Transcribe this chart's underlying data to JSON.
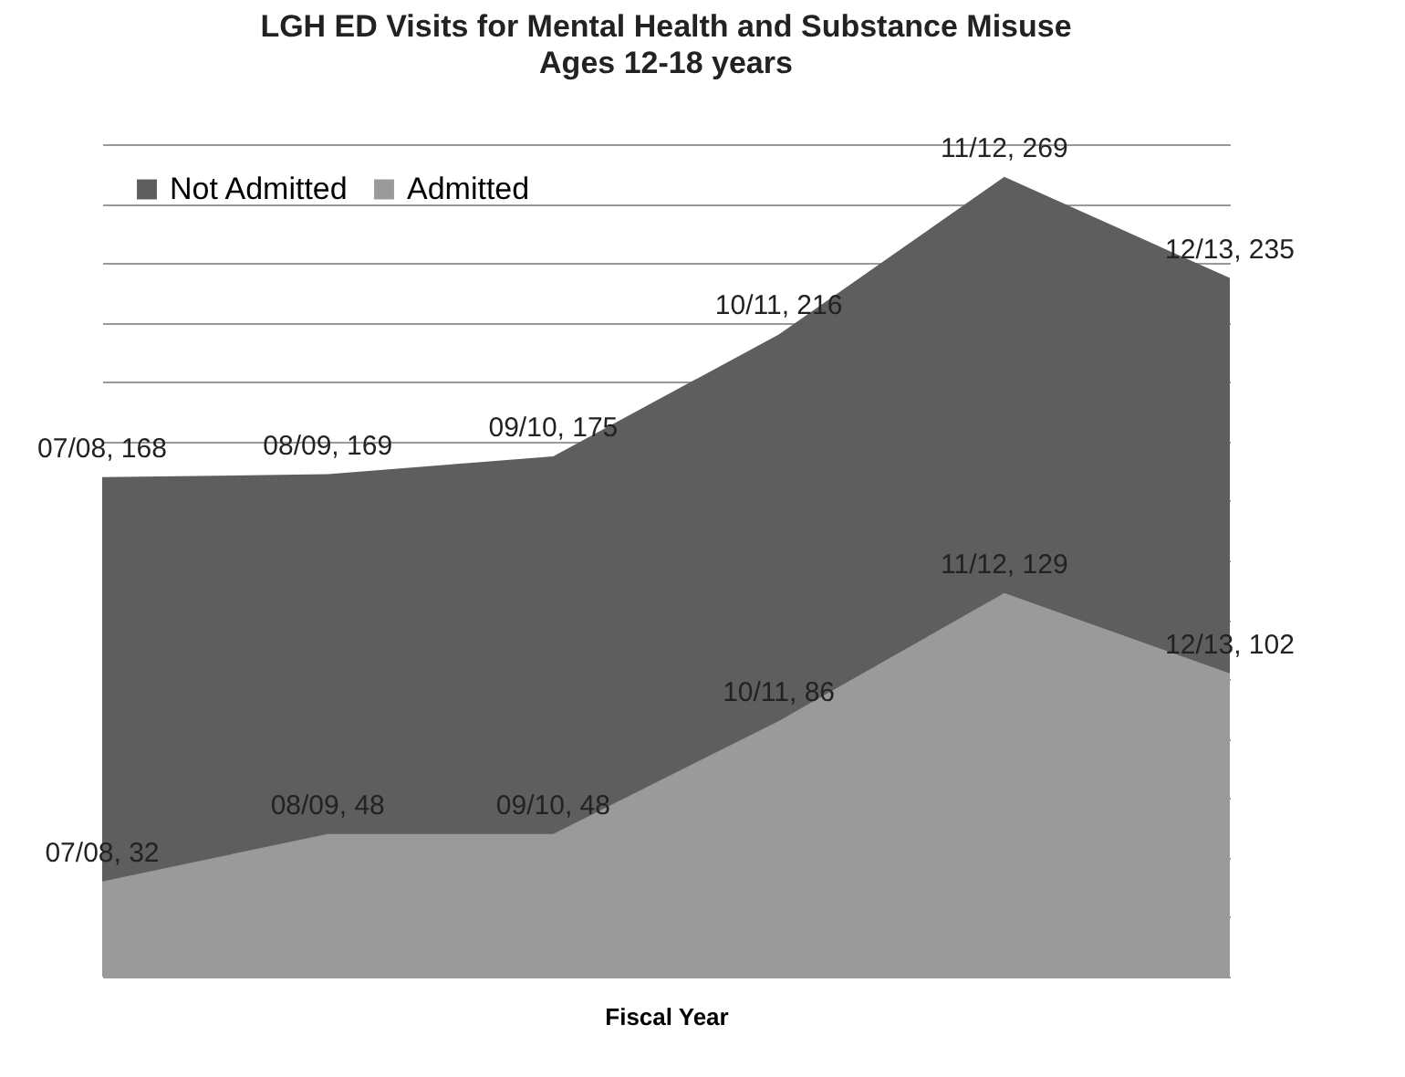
{
  "chart_data": {
    "type": "area",
    "title": "LGH ED Visits for Mental Health and Substance Misuse",
    "subtitle": "Ages 12-18 years",
    "xlabel": "Fiscal Year",
    "categories": [
      null,
      null,
      null,
      null,
      null,
      null
    ],
    "series": [
      {
        "name": "Not Admitted",
        "color": "#5e5e5e",
        "values": [
          168,
          169,
          175,
          216,
          269,
          235
        ],
        "value_labels": [
          "07/08, 168",
          "08/09, 169",
          "09/10, 175",
          "10/11, 216",
          "11/12, 269",
          "12/13, 235"
        ]
      },
      {
        "name": "Admitted",
        "color": "#9a9a9a",
        "values": [
          32,
          48,
          48,
          86,
          129,
          102
        ],
        "value_labels": [
          "07/08, 32",
          "08/09, 48",
          "09/10, 48",
          "10/11, 86",
          "11/12, 129",
          "12/13, 102"
        ]
      }
    ],
    "grid": "y",
    "legend": "top left"
  }
}
